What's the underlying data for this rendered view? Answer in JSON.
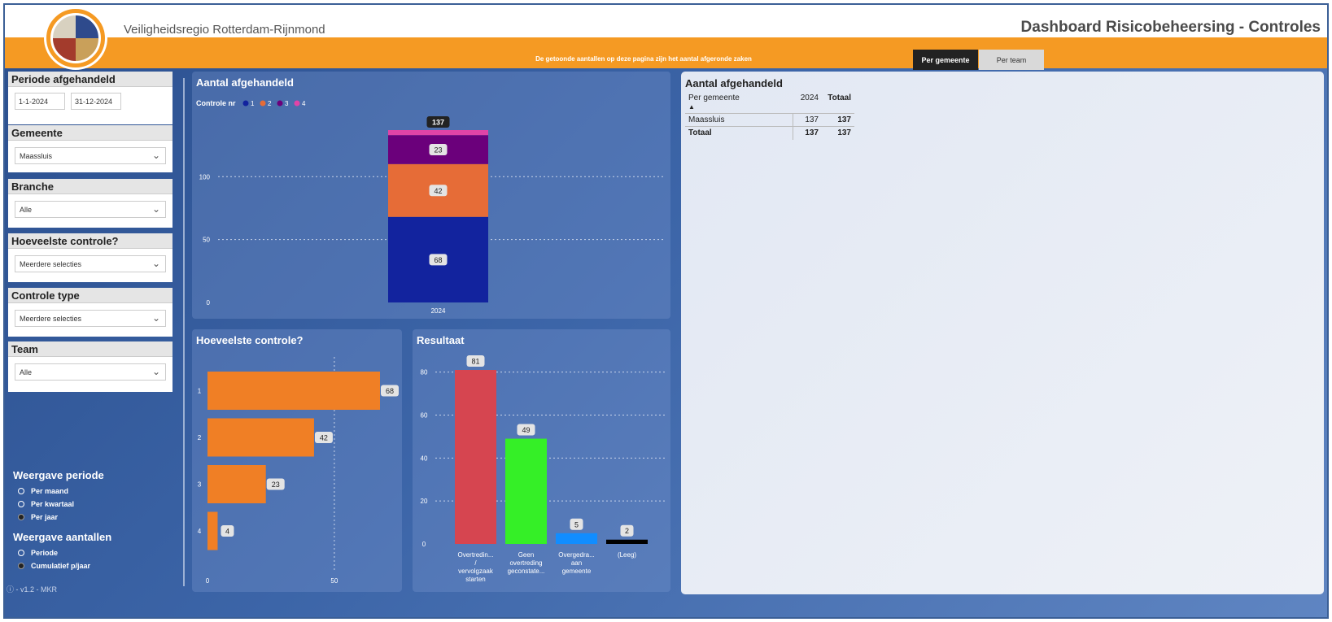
{
  "header": {
    "org_name": "Veiligheidsregio Rotterdam-Rijnmond",
    "title": "Dashboard Risicobeheersing - Controles",
    "notice": "De getoonde aantallen op deze pagina zijn het aantal afgeronde zaken",
    "tabs": [
      {
        "label": "Per gemeente",
        "active": true
      },
      {
        "label": "Per team",
        "active": false
      }
    ]
  },
  "filters": {
    "periode": {
      "label": "Periode afgehandeld",
      "start": "1-1-2024",
      "end": "31-12-2024"
    },
    "gemeente": {
      "label": "Gemeente",
      "value": "Maassluis"
    },
    "branche": {
      "label": "Branche",
      "value": "Alle"
    },
    "hoeveelste": {
      "label": "Hoeveelste controle?",
      "value": "Meerdere selecties"
    },
    "controle_type": {
      "label": "Controle type",
      "value": "Meerdere selecties"
    },
    "team": {
      "label": "Team",
      "value": "Alle"
    }
  },
  "weergave_periode": {
    "title": "Weergave periode",
    "options": [
      {
        "label": "Per maand",
        "selected": false
      },
      {
        "label": "Per kwartaal",
        "selected": false
      },
      {
        "label": "Per jaar",
        "selected": true
      }
    ]
  },
  "weergave_aantallen": {
    "title": "Weergave aantallen",
    "options": [
      {
        "label": "Periode",
        "selected": false
      },
      {
        "label": "Cumulatief p/jaar",
        "selected": true
      }
    ]
  },
  "version": "ⓘ - v1.2 - MKR",
  "charts": {
    "stacked": {
      "title": "Aantal afgehandeld",
      "legend_title": "Controle nr"
    },
    "hbar": {
      "title": "Hoeveelste controle?"
    },
    "result": {
      "title": "Resultaat"
    }
  },
  "chart_data": [
    {
      "type": "bar",
      "stacked": true,
      "title": "Aantal afgehandeld",
      "legend_title": "Controle nr",
      "categories": [
        "2024"
      ],
      "series": [
        {
          "name": "1",
          "values": [
            68
          ],
          "color": "#12239e"
        },
        {
          "name": "2",
          "values": [
            42
          ],
          "color": "#e66c37"
        },
        {
          "name": "3",
          "values": [
            23
          ],
          "color": "#6b007b"
        },
        {
          "name": "4",
          "values": [
            4
          ],
          "color": "#e044a7"
        }
      ],
      "total_labels": [
        137
      ],
      "ylim": [
        0,
        137
      ],
      "yticks": [
        0,
        50,
        100
      ],
      "grid": true,
      "legend_position": "top-left"
    },
    {
      "type": "bar",
      "orientation": "horizontal",
      "title": "Hoeveelste controle?",
      "categories": [
        "1",
        "2",
        "3",
        "4"
      ],
      "values": [
        68,
        42,
        23,
        4
      ],
      "color": "#f07f25",
      "xlim": [
        0,
        68
      ],
      "xticks": [
        0,
        50
      ],
      "grid": true
    },
    {
      "type": "bar",
      "title": "Resultaat",
      "categories": [
        "Overtredin... / vervolgzaak starten",
        "Geen overtreding geconstate...",
        "Overgedra... aan gemeente",
        "(Leeg)"
      ],
      "values": [
        81,
        49,
        5,
        2
      ],
      "colors": [
        "#d64550",
        "#35ef27",
        "#118dff",
        "#000000"
      ],
      "ylim": [
        0,
        81
      ],
      "yticks": [
        0,
        20,
        40,
        60,
        80
      ],
      "grid": true
    }
  ],
  "table": {
    "title": "Aantal afgehandeld",
    "columns": [
      "Per gemeente",
      "2024",
      "Totaal"
    ],
    "rows": [
      {
        "name": "Maassluis",
        "y2024": "137",
        "total": "137"
      }
    ],
    "totals": {
      "name": "Totaal",
      "y2024": "137",
      "total": "137"
    }
  }
}
